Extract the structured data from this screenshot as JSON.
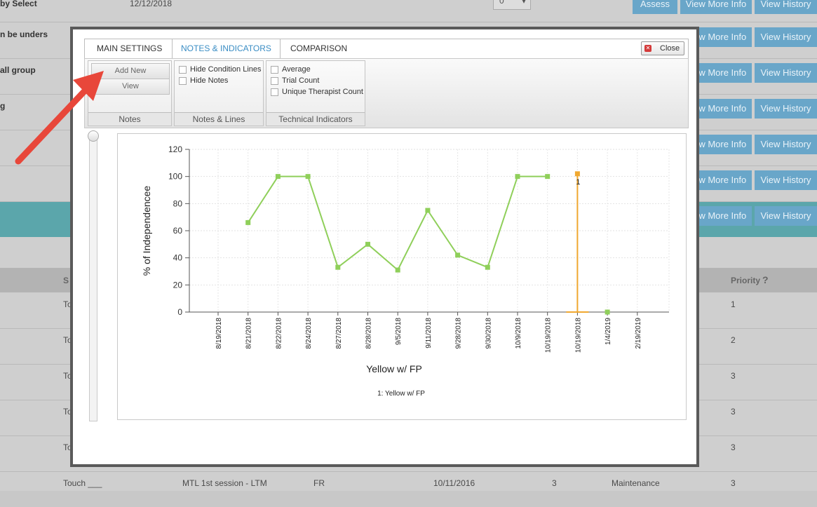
{
  "background": {
    "rows": [
      {
        "left_text": "by Select",
        "date": "12/12/2018",
        "select_value": "0",
        "buttons": [
          "Assess",
          "View More Info",
          "View History"
        ]
      },
      {
        "left_text": "n be unders",
        "buttons": [
          "View More Info",
          "View History"
        ]
      },
      {
        "left_text": "all group",
        "buttons": [
          "View More Info",
          "View History"
        ]
      },
      {
        "left_text": "g",
        "buttons": [
          "View More Info",
          "View History"
        ]
      },
      {
        "left_text": "",
        "buttons": [
          "View More Info",
          "View History"
        ]
      },
      {
        "left_text": "",
        "buttons": [
          "View More Info",
          "View History"
        ]
      },
      {
        "left_text": "",
        "buttons": [
          "View More Info",
          "View History"
        ]
      }
    ],
    "table_header": {
      "col_s": "S",
      "priority": "Priority",
      "priority_icon": "?"
    },
    "table_rows": [
      {
        "c1": "Touc",
        "priority": "1"
      },
      {
        "c1": "Touc",
        "priority": "2"
      },
      {
        "c1": "Touc",
        "priority": "3"
      },
      {
        "c1": "Touc",
        "priority": "3"
      },
      {
        "c1": "Touc",
        "priority": "3"
      },
      {
        "c1": "Touch ___",
        "c2": "MTL 1st session - LTM",
        "c3": "FR",
        "c4": "10/11/2016",
        "c5": "3",
        "c6": "Maintenance",
        "priority": "3"
      }
    ]
  },
  "modal": {
    "tabs": [
      "MAIN SETTINGS",
      "NOTES & INDICATORS",
      "COMPARISON"
    ],
    "active_tab": "NOTES & INDICATORS",
    "close_label": "Close",
    "groups": {
      "notes": {
        "label": "Notes",
        "add_new": "Add New",
        "view": "View"
      },
      "lines": {
        "label": "Notes & Lines",
        "options": [
          "Hide Condition Lines",
          "Hide Notes"
        ]
      },
      "tech": {
        "label": "Technical Indicators",
        "options": [
          "Average",
          "Trial Count",
          "Unique Therapist Count"
        ]
      }
    }
  },
  "chart_data": {
    "type": "line",
    "categories": [
      "8/19/2018",
      "8/21/2018",
      "8/22/2018",
      "8/24/2018",
      "8/27/2018",
      "8/28/2018",
      "9/5/2018",
      "9/11/2018",
      "9/28/2018",
      "9/30/2018",
      "10/9/2018",
      "10/19/2018",
      "10/19/2018",
      "1/4/2019",
      "2/19/2019"
    ],
    "series": [
      {
        "name": "Yellow w/ FP",
        "color": "#8fcf5a",
        "values": [
          null,
          66,
          100,
          100,
          33,
          50,
          31,
          75,
          42,
          33,
          100,
          100,
          null,
          0,
          null
        ]
      }
    ],
    "annotation": {
      "category_index": 12,
      "value": 102,
      "label": "1",
      "color": "#f0a830"
    },
    "xlabel": "Yellow w/ FP",
    "ylabel": "% of Independencee",
    "ylim": [
      0,
      120
    ],
    "yticks": [
      0,
      20,
      40,
      60,
      80,
      100,
      120
    ],
    "legend_text": "1: Yellow w/ FP",
    "grid": true
  },
  "colors": {
    "button_blue": "#69a6c9",
    "teal_row": "#5ba6ab",
    "arrow_red": "#e8473a",
    "tab_active": "#3a8dc4"
  }
}
